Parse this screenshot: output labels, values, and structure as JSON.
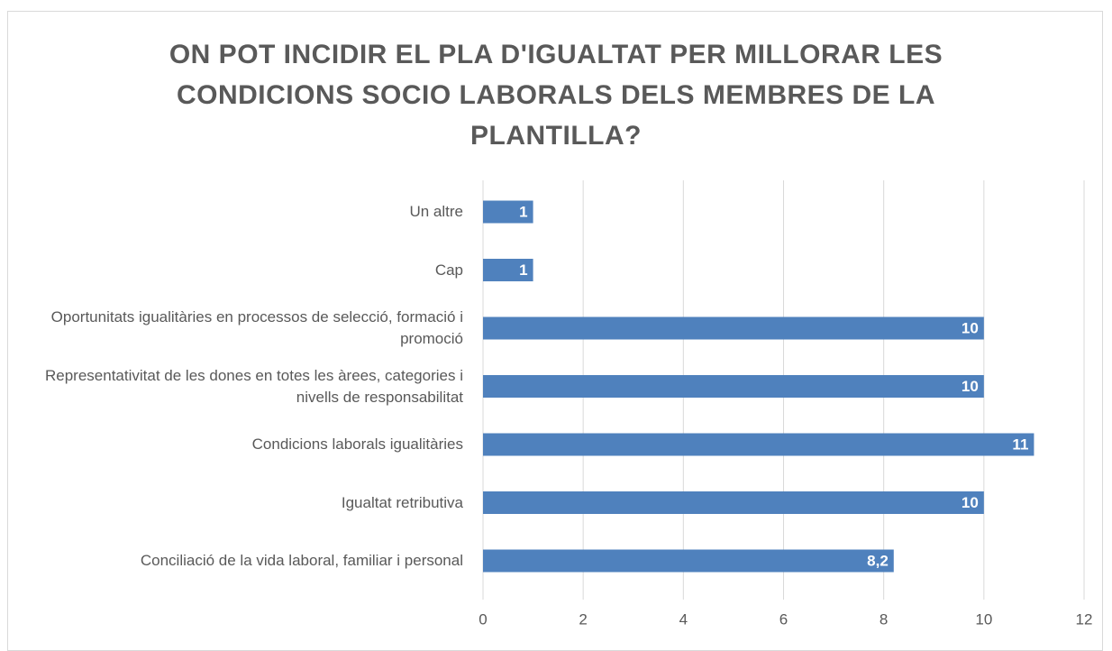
{
  "chart_data": {
    "type": "bar",
    "orientation": "horizontal",
    "title": "ON POT INCIDIR EL PLA D'IGUALTAT PER MILLORAR LES CONDICIONS SOCIO LABORALS DELS MEMBRES DE LA PLANTILLA?",
    "categories": [
      "Un altre",
      "Cap",
      "Oportunitats igualitàries en processos de selecció, formació i promoció",
      "Representativitat de les dones en totes les àrees, categories i nivells de responsabilitat",
      "Condicions laborals igualitàries",
      "Igualtat retributiva",
      "Conciliació de la vida laboral, familiar i personal"
    ],
    "values": [
      1,
      1,
      10,
      10,
      11,
      10,
      8.2
    ],
    "value_labels": [
      "1",
      "1",
      "10",
      "10",
      "11",
      "10",
      "8,2"
    ],
    "color": "#4f81bd",
    "xlim": [
      0,
      12
    ],
    "xticks": [
      0,
      2,
      4,
      6,
      8,
      10,
      12
    ],
    "grid": true
  }
}
